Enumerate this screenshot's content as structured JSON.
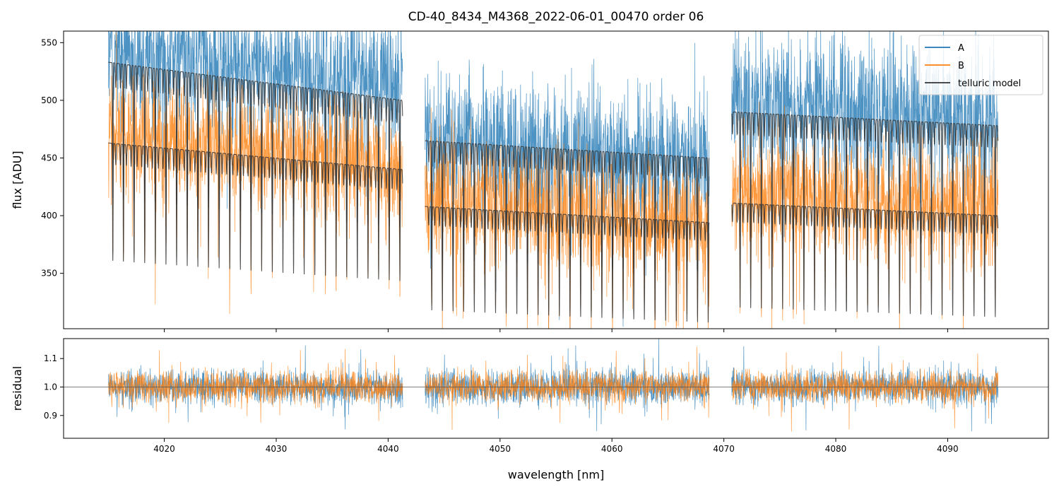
{
  "chart_data": {
    "type": "line",
    "title": "CD-40_8434_M4368_2022-06-01_00470  order 06",
    "xlabel": "wavelength [nm]",
    "xlim": [
      4011,
      4099
    ],
    "x_ticks": [
      4020,
      4030,
      4040,
      4050,
      4060,
      4070,
      4080,
      4090
    ],
    "segments": [
      [
        4015.0,
        4041.3
      ],
      [
        4043.3,
        4068.7
      ],
      [
        4070.7,
        4094.5
      ]
    ],
    "legend_position": "top-right",
    "colors": {
      "A": "#1f77b4",
      "B": "#ff7f0e",
      "telluric": "#333333"
    },
    "panels": [
      {
        "id": "flux",
        "ylabel": "flux [ADU]",
        "ylim": [
          302,
          560
        ],
        "y_ticks": [
          350,
          400,
          450,
          500,
          550
        ],
        "series": [
          {
            "name": "A",
            "kind": "observed",
            "noise": 28,
            "continuum": {
              "x": [
                4015,
                4041.3,
                4043.3,
                4068.7,
                4070.7,
                4094.5
              ],
              "y": [
                548,
                522,
                470,
                450,
                505,
                490
              ]
            }
          },
          {
            "name": "B",
            "kind": "observed",
            "noise": 24,
            "continuum": {
              "x": [
                4015,
                4041.3,
                4043.3,
                4068.7,
                4070.7,
                4094.5
              ],
              "y": [
                475,
                445,
                418,
                395,
                420,
                410
              ]
            }
          },
          {
            "name": "telluric model",
            "kind": "model",
            "of": "A",
            "continuum": {
              "x": [
                4015,
                4041.3,
                4043.3,
                4068.7,
                4070.7,
                4094.5
              ],
              "y": [
                533,
                500,
                465,
                450,
                490,
                478
              ]
            }
          },
          {
            "name": "telluric model",
            "kind": "model",
            "of": "B",
            "continuum": {
              "x": [
                4015,
                4041.3,
                4043.3,
                4068.7,
                4070.7,
                4094.5
              ],
              "y": [
                463,
                440,
                408,
                394,
                411,
                400
              ]
            }
          }
        ]
      },
      {
        "id": "residual",
        "ylabel": "residual",
        "ylim": [
          0.82,
          1.17
        ],
        "y_ticks": [
          0.9,
          1.0,
          1.1
        ],
        "reference_line": 1.0,
        "series": [
          {
            "name": "A",
            "center": 1.0,
            "noise": 0.055
          },
          {
            "name": "B",
            "center": 1.0,
            "noise": 0.05
          }
        ]
      }
    ],
    "telluric_lines": {
      "spacing_nm": 0.95,
      "depth_fraction": 0.22
    }
  }
}
